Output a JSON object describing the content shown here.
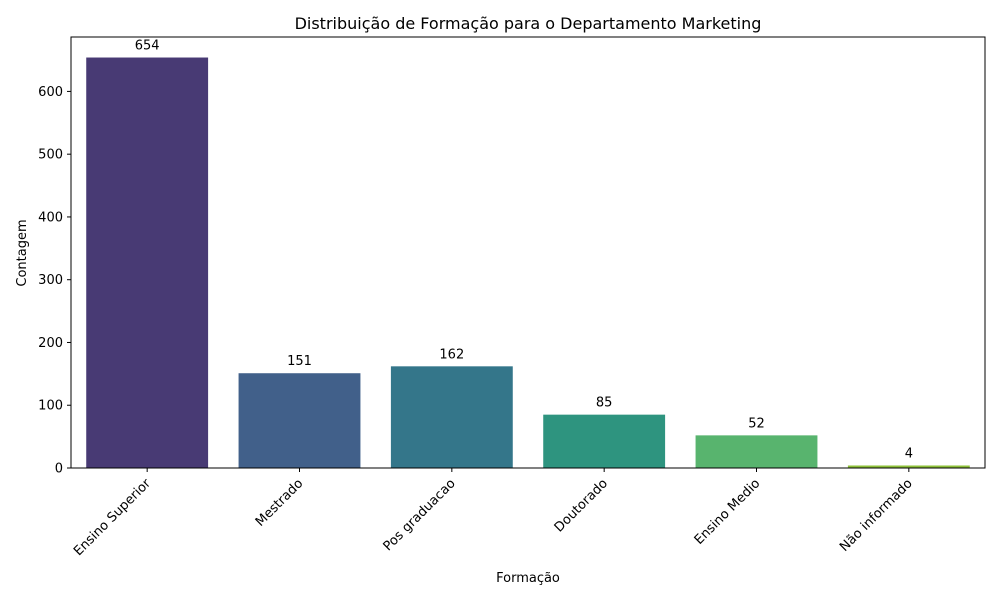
{
  "chart_data": {
    "type": "bar",
    "title": "Distribuição de Formação para o Departamento Marketing",
    "xlabel": "Formação",
    "ylabel": "Contagem",
    "categories": [
      "Ensino Superior",
      "Mestrado",
      "Pos graduacao",
      "Doutorado",
      "Ensino Medio",
      "Não informado"
    ],
    "values": [
      654,
      151,
      162,
      85,
      52,
      4
    ],
    "data_labels": [
      "654",
      "151",
      "162",
      "85",
      "52",
      "4"
    ],
    "colors": [
      "#483a74",
      "#41608a",
      "#34768a",
      "#2e947f",
      "#58b46e",
      "#8ec13a"
    ],
    "ylim": [
      0,
      686.7
    ],
    "yticks": [
      0,
      100,
      200,
      300,
      400,
      500,
      600
    ],
    "ytick_labels": [
      "0",
      "100",
      "200",
      "300",
      "400",
      "500",
      "600"
    ],
    "grid": false,
    "legend": "none"
  }
}
